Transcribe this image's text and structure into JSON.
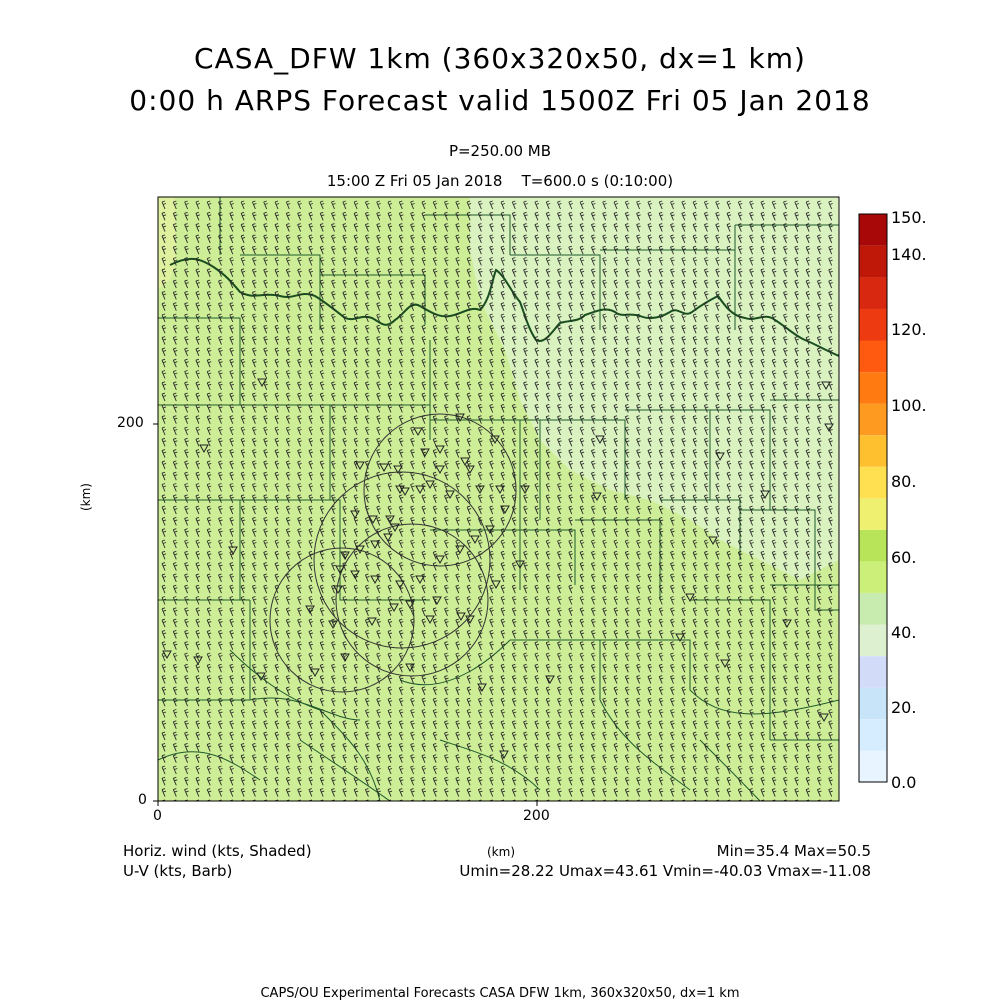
{
  "header": {
    "title_line1": "CASA_DFW 1km (360x320x50, dx=1 km)",
    "title_line2": "0:00 h ARPS Forecast valid 1500Z Fri 05 Jan 2018",
    "level": "P=250.00 MB",
    "valid_time": "15:00 Z Fri 05 Jan 2018",
    "model_time": "T=600.0 s (0:10:00)"
  },
  "axes": {
    "x_tick_labels": [
      "0",
      "200"
    ],
    "y_tick_labels": [
      "0",
      "200"
    ],
    "x_unit": "(km)",
    "y_unit": "(km)",
    "x_range_km": [
      0,
      360
    ],
    "y_range_km": [
      0,
      320
    ]
  },
  "colorbar": {
    "labels": [
      "150.",
      "140.",
      "120.",
      "100.",
      "80.",
      "60.",
      "40.",
      "20.",
      "0.0"
    ],
    "colors_bottom_to_top": [
      "#e8f4ff",
      "#d6ecff",
      "#c8e4f8",
      "#d2dcf8",
      "#ddf0d0",
      "#c8ecb0",
      "#ccef7a",
      "#b8e45a",
      "#f0f070",
      "#ffe050",
      "#ffc030",
      "#ff9a20",
      "#ff7a10",
      "#ff5a10",
      "#ee3a10",
      "#d82810",
      "#c01808",
      "#a80808"
    ]
  },
  "footer": {
    "field_label": "Horiz. wind (kts, Shaded)",
    "barb_label": "U-V (kts, Barb)",
    "minmax": "Min=35.4 Max=50.5",
    "uv_stats": "Umin=28.22 Umax=43.61 Vmin=-40.03 Vmax=-11.08",
    "credit": "CAPS/OU Experimental Forecasts  CASA DFW 1km, 360x320x50, dx=1 km"
  },
  "field": {
    "fill_color": "#cdee96",
    "light_region_color": "#dcf2c4",
    "county_line_color": "#1f5a2c",
    "river_color": "#1a4d20",
    "barb_color": "#2a2a2a",
    "radar_circle_color": "#333333"
  }
}
